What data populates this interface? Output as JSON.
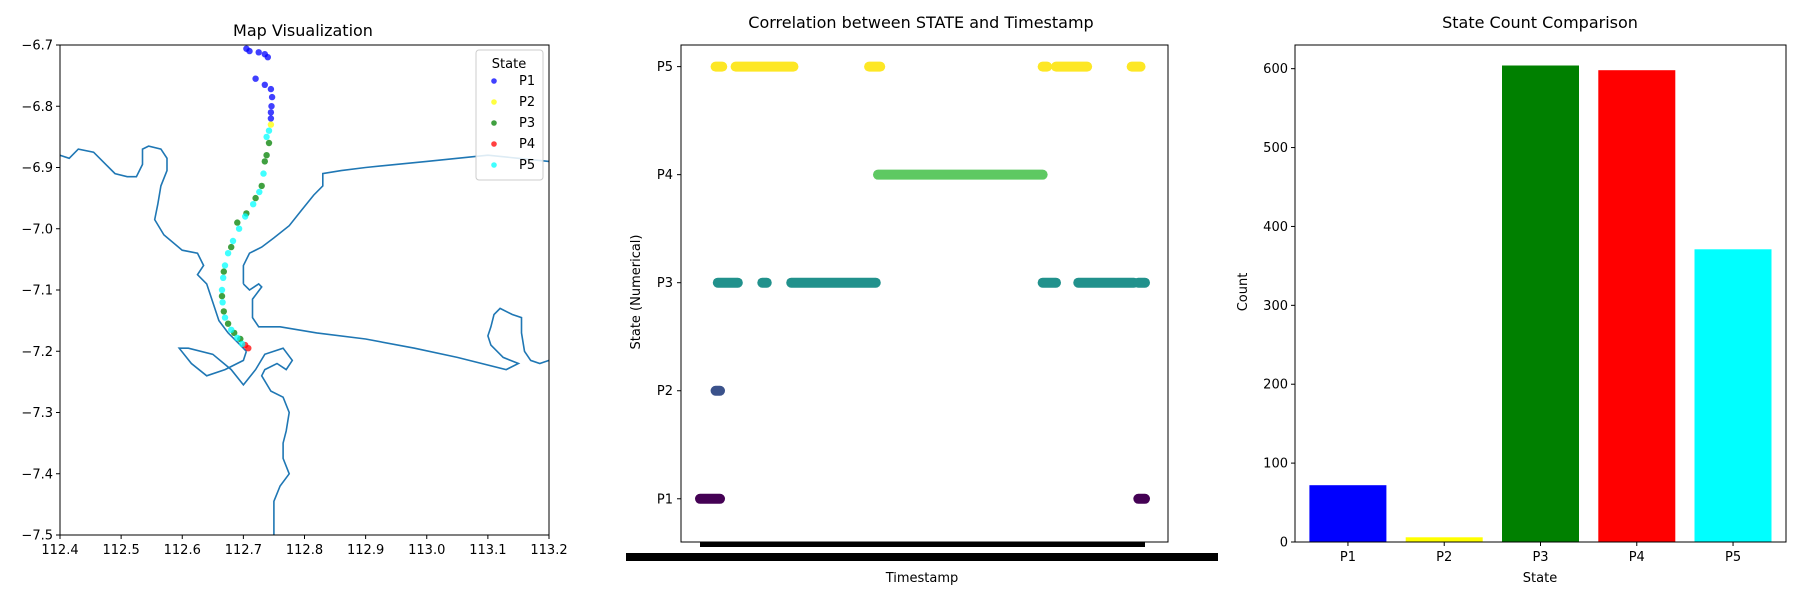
{
  "chart_data": [
    {
      "type": "scatter",
      "title": "Map Visualization",
      "xlim": [
        112.4,
        113.2
      ],
      "ylim": [
        -7.5,
        -6.7
      ],
      "xticks": [
        "112.4",
        "112.5",
        "112.6",
        "112.7",
        "112.8",
        "112.9",
        "113.0",
        "113.1",
        "113.2"
      ],
      "yticks": [
        "−6.7",
        "−6.8",
        "−6.9",
        "−7.0",
        "−7.1",
        "−7.2",
        "−7.3",
        "−7.4",
        "−7.5"
      ],
      "legend": {
        "title": "State",
        "position": "top-right"
      },
      "series": [
        {
          "name": "P1",
          "color": "#0000ff",
          "points": [
            [
              112.705,
              -6.706
            ],
            [
              112.71,
              -6.71
            ],
            [
              112.725,
              -6.712
            ],
            [
              112.735,
              -6.715
            ],
            [
              112.74,
              -6.72
            ],
            [
              112.72,
              -6.755
            ],
            [
              112.735,
              -6.765
            ],
            [
              112.745,
              -6.772
            ],
            [
              112.747,
              -6.785
            ],
            [
              112.746,
              -6.8
            ],
            [
              112.745,
              -6.81
            ],
            [
              112.745,
              -6.82
            ]
          ]
        },
        {
          "name": "P2",
          "color": "#ffff00",
          "points": [
            [
              112.745,
              -6.83
            ]
          ]
        },
        {
          "name": "P3",
          "color": "#008000",
          "points": [
            [
              112.742,
              -6.86
            ],
            [
              112.738,
              -6.88
            ],
            [
              112.735,
              -6.89
            ],
            [
              112.73,
              -6.93
            ],
            [
              112.72,
              -6.95
            ],
            [
              112.705,
              -6.975
            ],
            [
              112.69,
              -6.99
            ],
            [
              112.68,
              -7.03
            ],
            [
              112.668,
              -7.07
            ],
            [
              112.665,
              -7.11
            ],
            [
              112.668,
              -7.135
            ],
            [
              112.675,
              -7.155
            ],
            [
              112.685,
              -7.17
            ],
            [
              112.695,
              -7.18
            ]
          ]
        },
        {
          "name": "P4",
          "color": "#ff0000",
          "points": [
            [
              112.703,
              -7.19
            ],
            [
              112.708,
              -7.195
            ]
          ]
        },
        {
          "name": "P5",
          "color": "#00ffff",
          "points": [
            [
              112.742,
              -6.84
            ],
            [
              112.738,
              -6.85
            ],
            [
              112.733,
              -6.91
            ],
            [
              112.726,
              -6.94
            ],
            [
              112.716,
              -6.96
            ],
            [
              112.703,
              -6.98
            ],
            [
              112.693,
              -7.0
            ],
            [
              112.683,
              -7.02
            ],
            [
              112.675,
              -7.04
            ],
            [
              112.67,
              -7.06
            ],
            [
              112.667,
              -7.08
            ],
            [
              112.665,
              -7.1
            ],
            [
              112.666,
              -7.12
            ],
            [
              112.67,
              -7.145
            ],
            [
              112.68,
              -7.165
            ],
            [
              112.69,
              -7.178
            ],
            [
              112.698,
              -7.188
            ]
          ]
        }
      ],
      "coastline_color": "#1f77b4",
      "coastline": [
        [
          [
            112.4,
            -6.88
          ],
          [
            112.415,
            -6.885
          ],
          [
            112.43,
            -6.87
          ],
          [
            112.455,
            -6.875
          ],
          [
            112.475,
            -6.895
          ],
          [
            112.49,
            -6.91
          ],
          [
            112.51,
            -6.915
          ],
          [
            112.525,
            -6.915
          ],
          [
            112.535,
            -6.895
          ],
          [
            112.535,
            -6.87
          ],
          [
            112.545,
            -6.865
          ],
          [
            112.565,
            -6.87
          ],
          [
            112.575,
            -6.885
          ],
          [
            112.575,
            -6.905
          ],
          [
            112.565,
            -6.93
          ],
          [
            112.56,
            -6.96
          ],
          [
            112.555,
            -6.985
          ],
          [
            112.57,
            -7.01
          ],
          [
            112.6,
            -7.035
          ],
          [
            112.625,
            -7.04
          ],
          [
            112.635,
            -7.06
          ],
          [
            112.625,
            -7.075
          ],
          [
            112.64,
            -7.09
          ],
          [
            112.65,
            -7.12
          ],
          [
            112.66,
            -7.15
          ],
          [
            112.675,
            -7.17
          ],
          [
            112.69,
            -7.185
          ],
          [
            112.705,
            -7.2
          ]
        ],
        [
          [
            112.705,
            -7.2
          ],
          [
            112.7,
            -7.215
          ],
          [
            112.67,
            -7.23
          ],
          [
            112.64,
            -7.24
          ],
          [
            112.615,
            -7.22
          ],
          [
            112.595,
            -7.195
          ],
          [
            112.61,
            -7.195
          ],
          [
            112.65,
            -7.205
          ],
          [
            112.68,
            -7.23
          ],
          [
            112.7,
            -7.255
          ],
          [
            112.72,
            -7.23
          ],
          [
            112.735,
            -7.205
          ],
          [
            112.765,
            -7.195
          ],
          [
            112.78,
            -7.215
          ],
          [
            112.77,
            -7.23
          ],
          [
            112.755,
            -7.22
          ],
          [
            112.735,
            -7.23
          ],
          [
            112.73,
            -7.24
          ],
          [
            112.745,
            -7.265
          ],
          [
            112.765,
            -7.275
          ],
          [
            112.775,
            -7.3
          ],
          [
            112.77,
            -7.33
          ],
          [
            112.765,
            -7.35
          ],
          [
            112.765,
            -7.375
          ],
          [
            112.775,
            -7.4
          ],
          [
            112.76,
            -7.42
          ],
          [
            112.75,
            -7.445
          ],
          [
            112.75,
            -7.5
          ]
        ],
        [
          [
            112.7,
            -7.09
          ],
          [
            112.7,
            -7.06
          ],
          [
            112.71,
            -7.04
          ],
          [
            112.73,
            -7.03
          ],
          [
            112.75,
            -7.015
          ],
          [
            112.775,
            -6.995
          ],
          [
            112.795,
            -6.97
          ],
          [
            112.815,
            -6.945
          ],
          [
            112.83,
            -6.93
          ],
          [
            112.83,
            -6.91
          ],
          [
            112.86,
            -6.905
          ],
          [
            112.9,
            -6.9
          ],
          [
            112.95,
            -6.895
          ],
          [
            113.0,
            -6.89
          ],
          [
            113.05,
            -6.885
          ],
          [
            113.1,
            -6.88
          ],
          [
            113.15,
            -6.885
          ],
          [
            113.2,
            -6.89
          ]
        ],
        [
          [
            112.7,
            -7.09
          ],
          [
            112.71,
            -7.1
          ],
          [
            112.725,
            -7.09
          ],
          [
            112.73,
            -7.095
          ],
          [
            112.715,
            -7.115
          ],
          [
            112.715,
            -7.145
          ],
          [
            112.725,
            -7.16
          ],
          [
            112.76,
            -7.16
          ],
          [
            112.82,
            -7.17
          ],
          [
            112.9,
            -7.18
          ],
          [
            112.98,
            -7.195
          ],
          [
            113.05,
            -7.21
          ],
          [
            113.13,
            -7.23
          ],
          [
            113.15,
            -7.22
          ],
          [
            113.125,
            -7.21
          ],
          [
            113.105,
            -7.19
          ],
          [
            113.1,
            -7.175
          ],
          [
            113.105,
            -7.16
          ],
          [
            113.11,
            -7.14
          ],
          [
            113.12,
            -7.13
          ],
          [
            113.14,
            -7.14
          ],
          [
            113.155,
            -7.145
          ],
          [
            113.155,
            -7.17
          ],
          [
            113.16,
            -7.2
          ],
          [
            113.17,
            -7.215
          ],
          [
            113.185,
            -7.22
          ],
          [
            113.2,
            -7.215
          ]
        ]
      ]
    },
    {
      "type": "scatter",
      "title": "Correlation between STATE and Timestamp",
      "xlabel": "Timestamp",
      "ylabel": "State (Numerical)",
      "xlim": [
        0,
        100
      ],
      "ylim": [
        0.6,
        5.2
      ],
      "categories": [
        "P1",
        "P2",
        "P3",
        "P4",
        "P5"
      ],
      "segments": [
        {
          "state": 1,
          "from": 0,
          "to": 4.5,
          "color": "#440154"
        },
        {
          "state": 1,
          "from": 98.5,
          "to": 100,
          "color": "#440154"
        },
        {
          "state": 2,
          "from": 3.5,
          "to": 4.5,
          "color": "#3b528b"
        },
        {
          "state": 3,
          "from": 4,
          "to": 8.5,
          "color": "#21918c"
        },
        {
          "state": 3,
          "from": 14,
          "to": 15,
          "color": "#21918c"
        },
        {
          "state": 3,
          "from": 20.5,
          "to": 39.5,
          "color": "#21918c"
        },
        {
          "state": 3,
          "from": 77,
          "to": 80,
          "color": "#21918c"
        },
        {
          "state": 3,
          "from": 85,
          "to": 97.5,
          "color": "#21918c"
        },
        {
          "state": 3,
          "from": 98.5,
          "to": 100,
          "color": "#21918c"
        },
        {
          "state": 4,
          "from": 40,
          "to": 77,
          "color": "#5ec962"
        },
        {
          "state": 5,
          "from": 3.5,
          "to": 5,
          "color": "#fde725"
        },
        {
          "state": 5,
          "from": 8,
          "to": 21,
          "color": "#fde725"
        },
        {
          "state": 5,
          "from": 38,
          "to": 40.5,
          "color": "#fde725"
        },
        {
          "state": 5,
          "from": 77,
          "to": 78,
          "color": "#fde725"
        },
        {
          "state": 5,
          "from": 80,
          "to": 87,
          "color": "#fde725"
        },
        {
          "state": 5,
          "from": 97,
          "to": 99,
          "color": "#fde725"
        }
      ]
    },
    {
      "type": "bar",
      "title": "State Count Comparison",
      "xlabel": "State",
      "ylabel": "Count",
      "ylim": [
        0,
        630
      ],
      "yticks": [
        0,
        100,
        200,
        300,
        400,
        500,
        600
      ],
      "categories": [
        "P1",
        "P2",
        "P3",
        "P4",
        "P5"
      ],
      "values": [
        72,
        6,
        604,
        598,
        371
      ],
      "colors": [
        "#0000ff",
        "#ffff00",
        "#008000",
        "#ff0000",
        "#00ffff"
      ]
    }
  ]
}
